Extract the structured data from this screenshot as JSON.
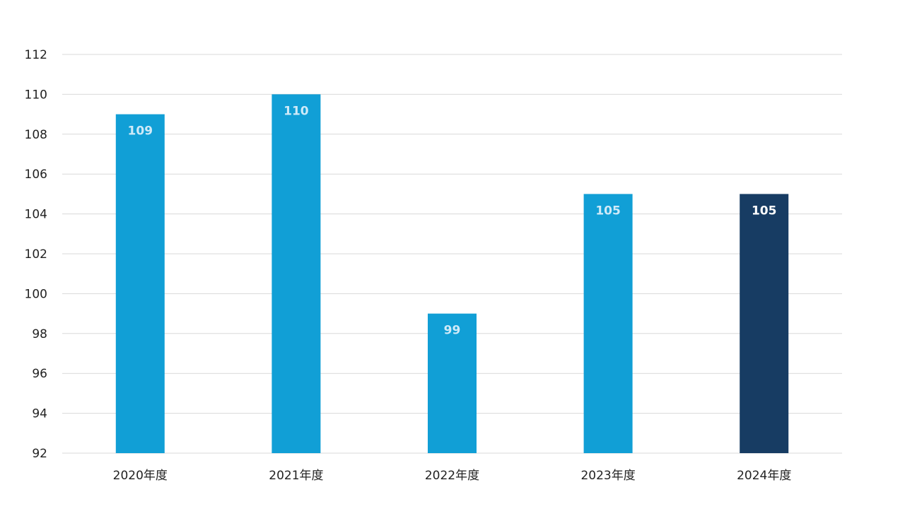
{
  "chart_data": {
    "type": "bar",
    "title": "",
    "xlabel": "",
    "ylabel": "",
    "categories": [
      "2020年度",
      "2021年度",
      "2022年度",
      "2023年度",
      "2024年度"
    ],
    "values": [
      109,
      110,
      99,
      105,
      105
    ],
    "data_labels": [
      "109",
      "110",
      "99",
      "105",
      "105"
    ],
    "ylim": [
      92,
      112
    ],
    "yticks": [
      92,
      94,
      96,
      98,
      100,
      102,
      104,
      106,
      108,
      110,
      112
    ],
    "grid": true,
    "legend": "none",
    "colors": {
      "default_bar": "#119fd6",
      "highlight_bar": "#173c63",
      "highlight_category": "2024年度"
    }
  }
}
